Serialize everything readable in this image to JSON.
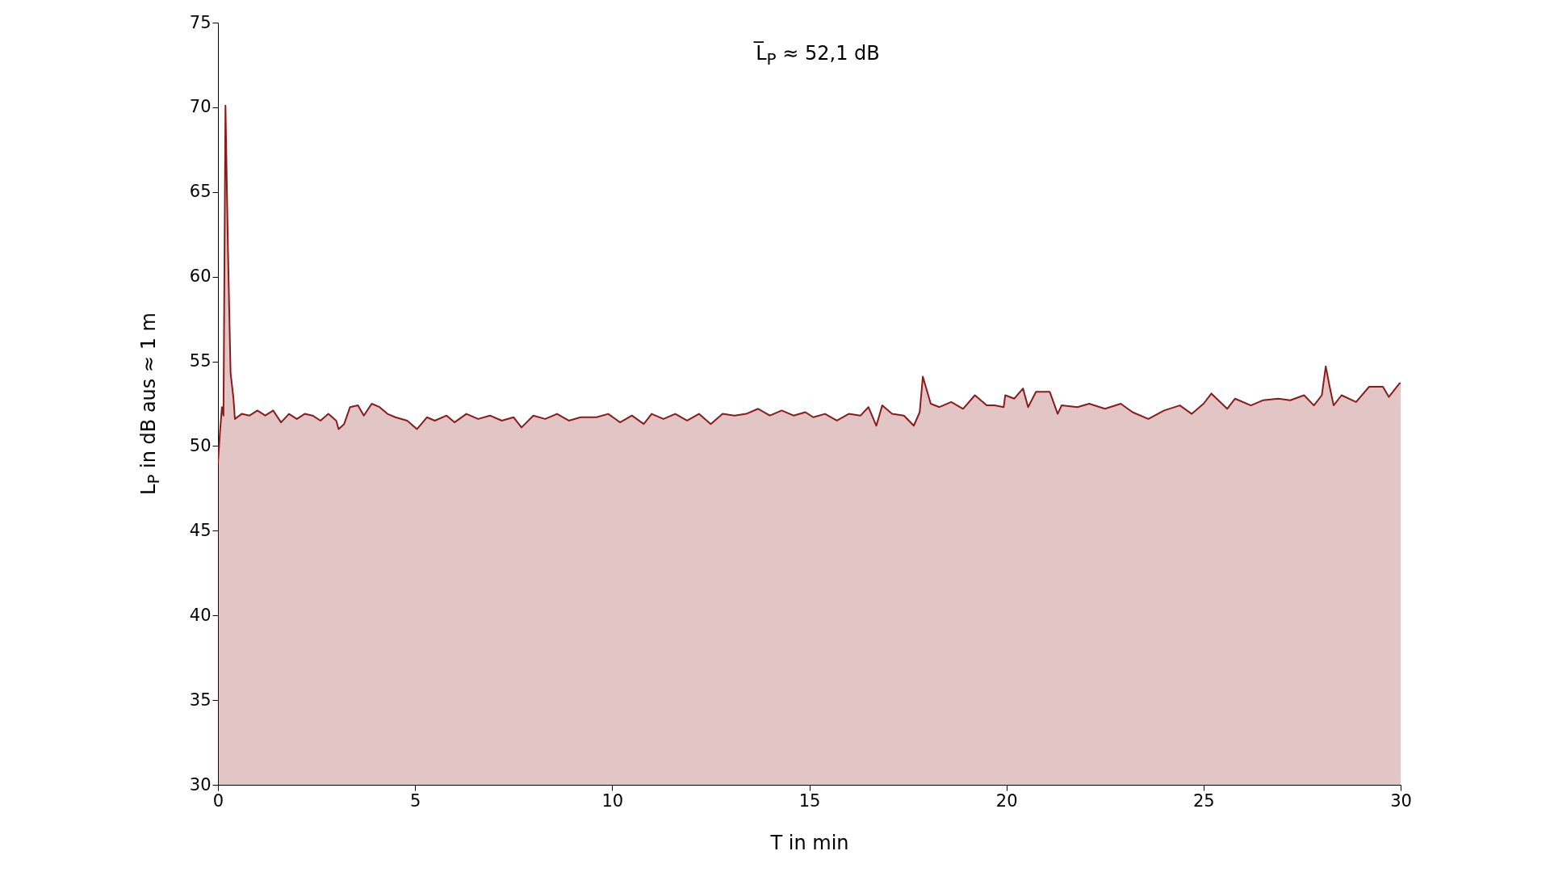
{
  "chart_data": {
    "type": "area",
    "xlabel": "T in min",
    "ylabel": "L$_{P}$ in dB aus ≈ 1 m",
    "annotations": [
      "L̅$_{P}$ ≈ 52,1 dB"
    ],
    "x": [
      0,
      0.05,
      0.1,
      0.14,
      0.19,
      0.25,
      0.32,
      0.39,
      0.43,
      0.6,
      0.8,
      1.0,
      1.2,
      1.4,
      1.6,
      1.8,
      2.0,
      2.2,
      2.4,
      2.6,
      2.8,
      3.0,
      3.06,
      3.2,
      3.35,
      3.55,
      3.7,
      3.9,
      4.1,
      4.3,
      4.5,
      4.8,
      5.05,
      5.3,
      5.5,
      5.8,
      6.0,
      6.3,
      6.6,
      6.9,
      7.2,
      7.5,
      7.7,
      8.0,
      8.3,
      8.6,
      8.9,
      9.2,
      9.6,
      9.9,
      10.2,
      10.5,
      10.8,
      11.0,
      11.3,
      11.6,
      11.9,
      12.2,
      12.5,
      12.8,
      13.1,
      13.4,
      13.7,
      14.0,
      14.3,
      14.6,
      14.9,
      15.1,
      15.4,
      15.7,
      16.0,
      16.3,
      16.5,
      16.7,
      16.85,
      17.1,
      17.4,
      17.65,
      17.8,
      17.88,
      18.08,
      18.3,
      18.6,
      18.9,
      19.2,
      19.5,
      19.7,
      19.93,
      19.97,
      20.2,
      20.42,
      20.55,
      20.75,
      21.1,
      21.3,
      21.4,
      21.8,
      22.1,
      22.5,
      22.9,
      23.2,
      23.6,
      24.0,
      24.4,
      24.7,
      25.0,
      25.2,
      25.6,
      25.8,
      26.2,
      26.5,
      26.9,
      27.2,
      27.55,
      27.8,
      28.0,
      28.1,
      28.2,
      28.3,
      28.5,
      28.87,
      29.2,
      29.55,
      29.7,
      29.97,
      30
    ],
    "series": [
      {
        "color": "#8b1a1a",
        "values": [
          49.0,
          50.8,
          52.3,
          51.8,
          70.1,
          62.0,
          54.3,
          52.9,
          51.6,
          51.9,
          51.8,
          52.1,
          51.8,
          52.1,
          51.4,
          51.9,
          51.6,
          51.9,
          51.8,
          51.5,
          51.9,
          51.5,
          51.0,
          51.3,
          52.3,
          52.4,
          51.8,
          52.5,
          52.3,
          51.9,
          51.7,
          51.5,
          51.0,
          51.7,
          51.5,
          51.8,
          51.4,
          51.9,
          51.6,
          51.8,
          51.5,
          51.7,
          51.1,
          51.8,
          51.6,
          51.9,
          51.5,
          51.7,
          51.7,
          51.9,
          51.4,
          51.8,
          51.3,
          51.9,
          51.6,
          51.9,
          51.5,
          51.9,
          51.3,
          51.9,
          51.8,
          51.9,
          52.2,
          51.8,
          52.1,
          51.8,
          52.0,
          51.7,
          51.9,
          51.5,
          51.9,
          51.8,
          52.3,
          51.2,
          52.4,
          51.9,
          51.8,
          51.2,
          52.0,
          54.1,
          52.5,
          52.3,
          52.6,
          52.2,
          53.0,
          52.4,
          52.4,
          52.3,
          53.0,
          52.8,
          53.4,
          52.3,
          53.2,
          53.2,
          51.9,
          52.4,
          52.3,
          52.5,
          52.2,
          52.5,
          52.0,
          51.6,
          52.1,
          52.4,
          51.9,
          52.5,
          53.1,
          52.2,
          52.8,
          52.4,
          52.7,
          52.8,
          52.7,
          53.0,
          52.4,
          53.0,
          54.7,
          53.5,
          52.4,
          53.0,
          52.6,
          53.5,
          53.5,
          52.9,
          53.7,
          53.7
        ]
      }
    ],
    "xlim": [
      0,
      30
    ],
    "xticks": [
      0,
      5,
      10,
      15,
      20,
      25,
      30
    ],
    "ylim": [
      30,
      75
    ],
    "yticks": [
      30,
      35,
      40,
      45,
      50,
      55,
      60,
      65,
      70,
      75
    ],
    "grid": false
  }
}
